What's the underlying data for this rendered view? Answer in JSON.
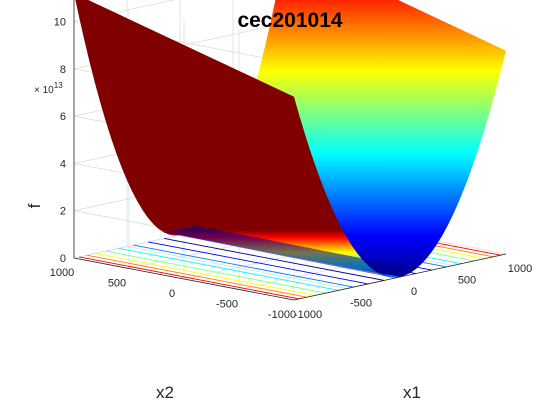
{
  "chart_data": {
    "type": "surface",
    "title": "cec201014",
    "xlabel": "x1",
    "ylabel": "x2",
    "zlabel": "f",
    "z_exponent_label": "× 10",
    "z_exponent_power": "13",
    "xlim": [
      -1000,
      1000
    ],
    "ylim": [
      -1000,
      1000
    ],
    "zlim": [
      0,
      11
    ],
    "x_ticks": [
      "-1000",
      "-500",
      "0",
      "500",
      "1000"
    ],
    "x_tick_values": [
      -1000,
      -500,
      0,
      500,
      1000
    ],
    "y_ticks": [
      "-1000",
      "-500",
      "0",
      "500",
      "1000"
    ],
    "y_tick_values": [
      -1000,
      -500,
      0,
      500,
      1000
    ],
    "z_ticks": [
      "0",
      "2",
      "4",
      "6",
      "8",
      "10"
    ],
    "z_tick_values": [
      0,
      2,
      4,
      6,
      8,
      10
    ],
    "surface_profile": {
      "x1": [
        -1000,
        -500,
        0,
        500,
        1000
      ],
      "f_at_x2_1000": [
        11.2,
        2.8,
        0,
        2.8,
        11.2
      ],
      "f_at_x2_minus_1000": [
        8.6,
        2.2,
        0,
        2.2,
        8.6
      ]
    },
    "colormap": [
      "#00008f",
      "#0000ff",
      "#0080ff",
      "#00ffff",
      "#80ff80",
      "#ffff00",
      "#ff8000",
      "#ff0000",
      "#800000"
    ],
    "grid": true,
    "contour_on_floor": true
  }
}
